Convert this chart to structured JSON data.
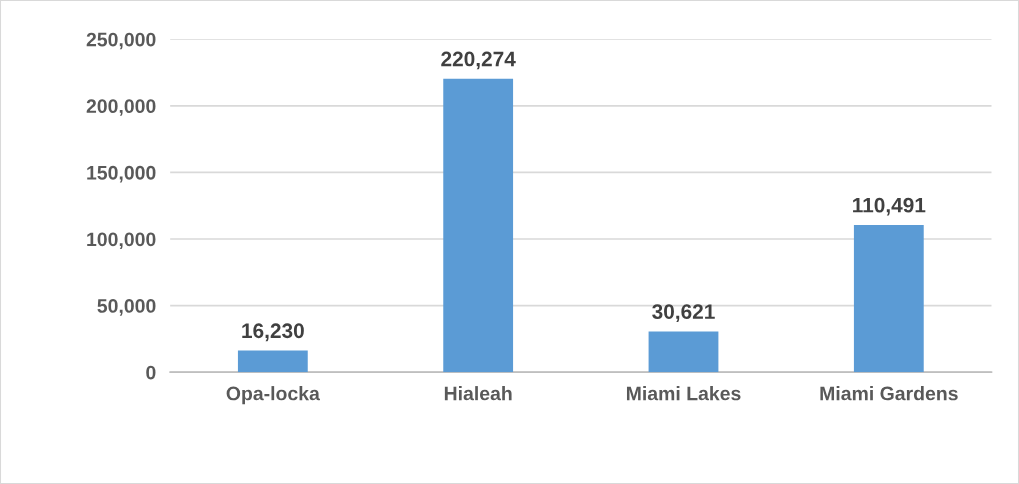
{
  "chart_data": {
    "type": "bar",
    "categories": [
      "Opa-locka",
      "Hialeah",
      "Miami Lakes",
      "Miami Gardens"
    ],
    "values": [
      16230,
      220274,
      30621,
      110491
    ],
    "value_labels": [
      "16,230",
      "220,274",
      "30,621",
      "110,491"
    ],
    "color": "#5b9bd5",
    "ylim": [
      0,
      250000
    ],
    "yticks": [
      {
        "value": 0,
        "label": "0"
      },
      {
        "value": 50000,
        "label": "50,000"
      },
      {
        "value": 100000,
        "label": "100,000"
      },
      {
        "value": 150000,
        "label": "150,000"
      },
      {
        "value": 200000,
        "label": "200,000"
      },
      {
        "value": 250000,
        "label": "250,000"
      }
    ],
    "grid": "y"
  }
}
